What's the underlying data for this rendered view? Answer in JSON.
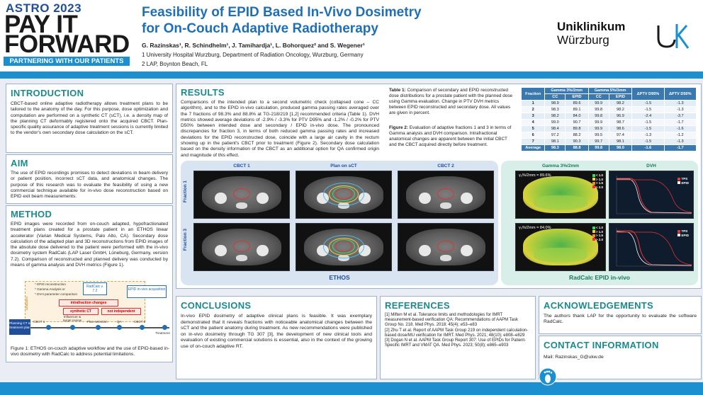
{
  "brand": {
    "event": "ASTRO 2023",
    "line1": "PAY IT",
    "line2": "FORWARD",
    "tagline": "PARTNERING WITH OUR PATIENTS"
  },
  "header": {
    "title_line1": "Feasibility of EPID Based In-Vivo Dosimetry",
    "title_line2": "for On-Couch Adaptive Radiotherapy",
    "authors": "G. Razinskas¹, R. Schindhelm¹, J. Tamihardja¹, L. Bohorquez² and S. Wegener¹",
    "affiliation1": "1 University Hospital Wurzburg, Department of Radiation Oncology, Wurzburg, Germany",
    "affiliation2": "2 LAP, Boynton Beach, FL",
    "logo_line1": "Uniklinikum",
    "logo_line2": "Würzburg",
    "logo_mark": "UK"
  },
  "intro": {
    "heading": "INTRODUCTION",
    "text": "CBCT-based online adaptive radiotherapy allows treatment plans to be tailored to the anatomy of the day. For this purpose, dose optimization and computation are performed on a synthetic CT (sCT), i.e. a density map of the planning CT deformably registered onto the acquired CBCT. Plan-specific quality assurance of adaptive treatment sessions is currently limited to the vendor's own secondary dose calculation on the sCT."
  },
  "aim": {
    "heading": "AIM",
    "text": "The use of EPID recordings promises to detect deviations in beam delivery or patient position, incorrect sCT data, and anatomical changes. The purpose of this research was to evaluate the feasibility of using a new commercial technique available for in-vivo dose reconstruction based on EPID exit beam measurements."
  },
  "method": {
    "heading": "METHOD",
    "text": "EPID images were recorded from on-couch adapted, hypofractionated treatment plans created for a prostate patient in an ETHOS linear accelerator (Varian Medical Systems, Palo Alto, CA). Secondary dose calculation of the adapted plan and 3D reconstructions from EPID images of the absolute dose delivered to the patient were performed with the in-vivo dosimetry system RadCalc (LAP Laser GmbH, Lüneburg, Germany, version 7.2). Comparison of reconstructed and planned delivery was conducted by means of gamma analysis and DVH metrics (Figure 1).",
    "workflow": {
      "notes": [
        "* EPID reconstruction",
        "* Gamma Analysis or",
        "* DVH parameter comparison"
      ],
      "radcalc": "RadCalc v. 7.2",
      "epid_label": "EPID in-vivo acquisition",
      "limitation": "Limitation",
      "intrafraction": "intrafraction changes",
      "synthetic": "synthetic CT",
      "not_independent": "not independent",
      "planning": "Planning CT & treatment plan",
      "steps": [
        "CBCT 1",
        "Influencer & target review",
        "Plan selection",
        "QA",
        "CBCT 2",
        "Treatment"
      ]
    },
    "caption": "Figure 1: ETHOS on-couch adaptive workflow and the use of EPID-based in-vivo dosimetry with RadCalc to address potential limitations."
  },
  "results": {
    "heading": "RESULTS",
    "text": "Comparisons of the intended plan to a second volumetric check (collapsed cone – CC algorithm), and to the EPID in-vivo calculation, produced gamma passing rates averaged over the 7 fractions of 98.3% and 88.8% at TG-218/219 [1,2] recommended criteria (Table 1). DVH metrics showed average deviations of -2.9% / -3.3% for PTV D95% and -1.2% / -0.2% for PTV D50% between intended dose and secondary / EPID in-vivo dose. The pronounced discrepancies for fraction 3, in terms of both reduced gamma passing rates and increased deviations for the EPID reconstructed dose, coincide with a large air cavity in the rectum showing up in the patient's CBCT prior to treatment (Figure 2). Secondary dose calculation based on the density information of the CBCT as an additional option for QA confirmed origin and magnitude of this effect.",
    "table_caption_label": "Table 1:",
    "table_caption": "Comparison of secondary and EPID reconstructed dose distributions for a prostate patient with the planned dose using Gamma evaluation. Change in PTV DVH metrics between EPID reconstructed and secondary dose. All values are given in percent.",
    "figure_caption_label": "Figure 2:",
    "figure_caption": "Evaluation of adaptive fractions 1 and 3 in terms of Gamma analysis and DVH comparison. Intrafractional anatomical changes are apparent between the initial CBCT and the CBCT acquired directly before treatment.",
    "table": {
      "col_fraction": "Fraction",
      "group1": "Gamma 3%/2mm",
      "group2": "Gamma 5%/3mm",
      "col_dptv1": "ΔPTV D95%",
      "col_dptv2": "ΔPTV D50%",
      "sub_cc": "CC",
      "sub_epid": "EPID",
      "rows": [
        [
          "1",
          "98.9",
          "89.6",
          "99.9",
          "98.2",
          "-1.5",
          "-1.3"
        ],
        [
          "2",
          "98.3",
          "89.1",
          "99.8",
          "98.2",
          "-1.5",
          "-1.3"
        ],
        [
          "3",
          "98.2",
          "84.0",
          "99.8",
          "96.9",
          "-2.4",
          "-3.7"
        ],
        [
          "4",
          "99.0",
          "90.7",
          "99.9",
          "98.7",
          "-1.5",
          "-1.7"
        ],
        [
          "5",
          "98.4",
          "89.8",
          "99.9",
          "98.6",
          "-1.5",
          "-1.6"
        ],
        [
          "6",
          "97.2",
          "88.2",
          "99.5",
          "97.4",
          "-1.3",
          "-1.2"
        ],
        [
          "7",
          "98.1",
          "90.3",
          "99.7",
          "98.1",
          "-1.5",
          "-1.3"
        ]
      ],
      "average": [
        "Average",
        "98.3",
        "88.8",
        "99.8",
        "98.0",
        "-1.6",
        "-1.7"
      ]
    },
    "figure": {
      "cbct1": "CBCT 1",
      "plan_sct": "Plan on sCT",
      "cbct2": "CBCT 2",
      "gamma": "Gamma 3%/2mm",
      "dvh": "DVH",
      "fraction1": "Fraction 1",
      "fraction3": "Fraction 3",
      "ethos": "ETHOS",
      "radcalc": "RadCalc EPID in-vivo",
      "gamma_f1": "γ₃%/2mm = 89.6%",
      "gamma_f3": "γ₃%/2mm = 84.0%",
      "legend": [
        "< 1.0",
        "> 1.0",
        "> 1.5",
        "> 2.0"
      ],
      "dvh_tps": "TPS",
      "dvh_epid": "EPID"
    }
  },
  "conclusions": {
    "heading": "CONCLUSIONS",
    "text": "In-vivo EPID dosimetry of adaptive clinical plans is feasible. It was exemplary demonstrated that it reveals fractions with noticeable anatomical changes between the sCT and the patient anatomy during treatment. As new recommendations were published on in-vivo dosimetry through TG 307 [3], the development of new clinical tools and evaluation of existing commercial solutions is essential, also in the context of the growing use of on-couch adaptive RT."
  },
  "references": {
    "heading": "REFERENCES",
    "items": [
      "[1] Miften M et al. Tolerance limits and methodologies for IMRT measurement-based verification QA: Recommendations of AAPM Task Group No. 218. Med Phys. 2018; 45(4); e53–e83",
      "[2] Zhu T et al. Report of AAPM Task Group 219 on independent calculation-based dose/MU verification for IMRT. Med Phys. 2021; 48(10); e808–e829",
      "[3] Dogan N et al. AAPM Task Group Report 307: Use of EPIDs for Patient-Specific IMRT and VMAT QA. Med Phys. 2023; 50(8); e865–e903"
    ]
  },
  "ack": {
    "heading": "ACKNOWLEDGEMENTS",
    "text": "The authors thank LAP for the opportunity to evaluate the software RadCalc."
  },
  "contact": {
    "heading": "CONTACT INFORMATION",
    "text": "Mail: Razinskas_G@ukw.de"
  },
  "colors": {
    "accent_blue": "#1b8fd0",
    "title_blue": "#1f6fb7",
    "heading_teal": "#1a8a8f",
    "ethos_bg": "#d9e4f3",
    "radcalc_bg": "#d8eee9"
  }
}
